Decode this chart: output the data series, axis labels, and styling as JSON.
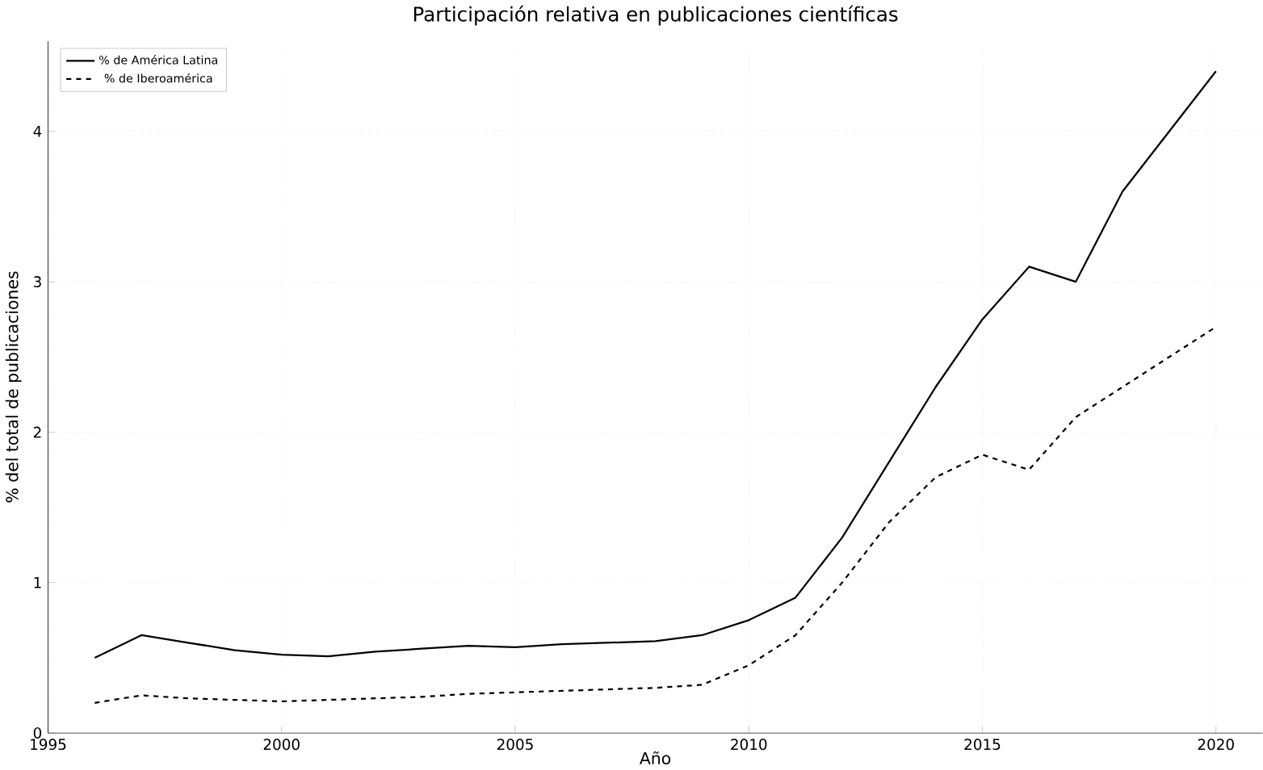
{
  "chart_data": {
    "type": "line",
    "title": "Participación relativa en publicaciones científicas",
    "xlabel": "Año",
    "ylabel": "% del total de publicaciones",
    "x": [
      1996,
      1997,
      1998,
      1999,
      2000,
      2001,
      2002,
      2003,
      2004,
      2005,
      2006,
      2007,
      2008,
      2009,
      2010,
      2011,
      2012,
      2013,
      2014,
      2015,
      2016,
      2017,
      2018,
      2019,
      2020
    ],
    "series": [
      {
        "name": "% de América Latina",
        "color": "#000000",
        "line_style": "solid",
        "values": [
          0.5,
          0.65,
          0.6,
          0.55,
          0.52,
          0.51,
          0.54,
          0.56,
          0.58,
          0.57,
          0.59,
          0.6,
          0.61,
          0.65,
          0.75,
          0.9,
          1.3,
          1.8,
          2.3,
          2.75,
          3.1,
          3.0,
          3.6,
          4.0,
          4.4
        ]
      },
      {
        "name": "% de Iberoamérica",
        "color": "#000000",
        "line_style": "dashed",
        "values": [
          0.2,
          0.25,
          0.23,
          0.22,
          0.21,
          0.22,
          0.23,
          0.24,
          0.26,
          0.27,
          0.28,
          0.29,
          0.3,
          0.32,
          0.45,
          0.65,
          1.0,
          1.4,
          1.7,
          1.85,
          1.75,
          2.1,
          2.3,
          2.5,
          2.7
        ]
      }
    ],
    "xlim": [
      1995,
      2021
    ],
    "ylim": [
      0,
      4.6
    ],
    "xticks": [
      1995,
      2000,
      2005,
      2010,
      2015,
      2020
    ],
    "yticks": [
      0,
      1,
      2,
      3,
      4
    ],
    "grid": true,
    "legend": "top left",
    "marker": "none"
  }
}
